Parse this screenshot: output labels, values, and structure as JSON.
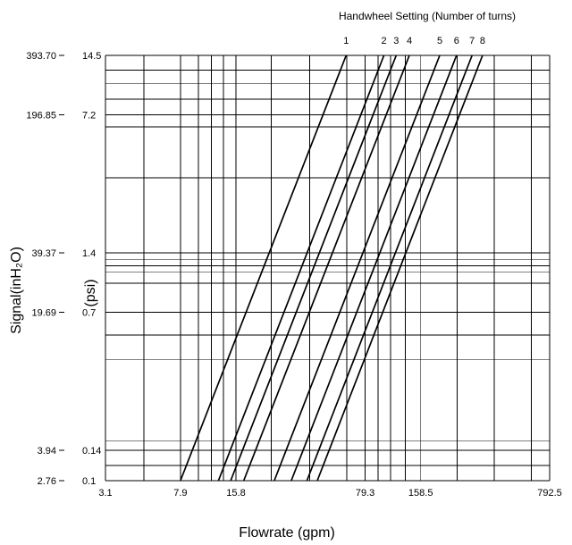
{
  "chart_data": {
    "type": "line",
    "title": "Handwheel Setting (Number of turns)",
    "xlabel": "Flowrate (gpm)",
    "ylabel": "Signal(inH₂O)",
    "ylabel_secondary": "(psi)",
    "x_scale": "log",
    "y_scale": "log",
    "xlim": [
      3.1,
      792.5
    ],
    "ylim": [
      2.76,
      393.7
    ],
    "grid": true,
    "x_tick_labels": [
      "3.1",
      "7.9",
      "15.8",
      "79.3",
      "158.5",
      "792.5"
    ],
    "x_tick_values": [
      3.1,
      7.9,
      15.8,
      79.3,
      158.5,
      792.5
    ],
    "y_tick_labels_inh2o": [
      "2.76",
      "3.94",
      "19.69",
      "39.37",
      "196.85",
      "393.70"
    ],
    "y_tick_values_inh2o": [
      2.76,
      3.94,
      19.69,
      39.37,
      196.85,
      393.7
    ],
    "y_tick_labels_psi": [
      "0.1",
      "0.14",
      "0.7",
      "1.4",
      "7.2",
      "14.5"
    ],
    "x_grid_values": [
      3.1,
      5,
      7.9,
      9.9,
      11.6,
      13.5,
      15.8,
      24.5,
      39.7,
      63,
      79.3,
      93,
      109,
      131,
      158.5,
      250,
      396,
      630,
      792.5
    ],
    "y_grid_values": [
      2.76,
      3.3,
      3.94,
      4.4,
      11.3,
      15.1,
      19.69,
      27.6,
      31.4,
      33.9,
      36.5,
      39.37,
      94.6,
      171,
      196.85,
      236,
      283,
      331,
      393.7
    ],
    "series": [
      {
        "name": "1",
        "points": [
          [
            7.9,
            2.76
          ],
          [
            62.5,
            393.7
          ]
        ]
      },
      {
        "name": "2",
        "points": [
          [
            12.7,
            2.76
          ],
          [
            100.2,
            393.7
          ]
        ]
      },
      {
        "name": "3",
        "points": [
          [
            14.8,
            2.76
          ],
          [
            116.7,
            393.7
          ]
        ]
      },
      {
        "name": "4",
        "points": [
          [
            17.4,
            2.76
          ],
          [
            137.5,
            393.7
          ]
        ]
      },
      {
        "name": "5",
        "points": [
          [
            25.5,
            2.76
          ],
          [
            201,
            393.7
          ]
        ]
      },
      {
        "name": "6",
        "points": [
          [
            31.5,
            2.76
          ],
          [
            248,
            393.7
          ]
        ]
      },
      {
        "name": "7",
        "points": [
          [
            38.3,
            2.76
          ],
          [
            301,
            393.7
          ]
        ]
      },
      {
        "name": "8",
        "points": [
          [
            43.6,
            2.76
          ],
          [
            343,
            393.7
          ]
        ]
      }
    ]
  }
}
